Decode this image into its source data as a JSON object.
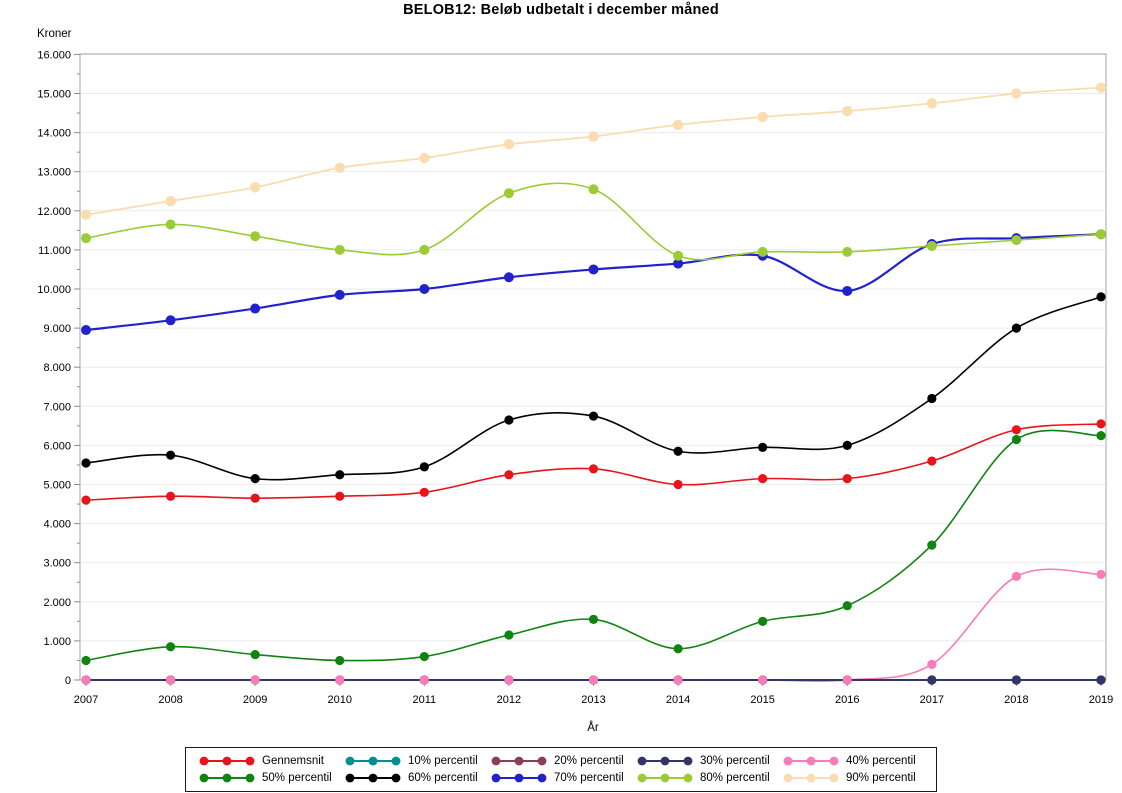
{
  "title": "BELOB12: Beløb udbetalt i december måned",
  "chart_data": {
    "type": "line",
    "title": "BELOB12: Beløb udbetalt i december måned",
    "xlabel": "År",
    "ylabel": "Kroner",
    "x": [
      2007,
      2008,
      2009,
      2010,
      2011,
      2012,
      2013,
      2014,
      2015,
      2016,
      2017,
      2018,
      2019
    ],
    "x_tick_labels": [
      "2007",
      "2008",
      "2009",
      "2010",
      "2011",
      "2012",
      "2013",
      "2014",
      "2015",
      "2016",
      "2017",
      "2018",
      "2019"
    ],
    "y_tick_labels": [
      "0",
      "1.000",
      "2.000",
      "3.000",
      "4.000",
      "5.000",
      "6.000",
      "7.000",
      "8.000",
      "9.000",
      "10.000",
      "11.000",
      "12.000",
      "13.000",
      "14.000",
      "15.000",
      "16.000"
    ],
    "ylim": [
      0,
      16000
    ],
    "y_major_step": 1000,
    "y_minor_step": 500,
    "grid": true,
    "legend_position": "bottom",
    "series": [
      {
        "name": "Gennemsnit",
        "color": "#e8141c",
        "values": [
          4600,
          4700,
          4650,
          4700,
          4800,
          5250,
          5400,
          5000,
          5150,
          5150,
          5600,
          6400,
          6550
        ]
      },
      {
        "name": "10% percentil",
        "color": "#008f8f",
        "values": [
          0,
          0,
          0,
          0,
          0,
          0,
          0,
          0,
          0,
          0,
          0,
          0,
          0
        ]
      },
      {
        "name": "20% percentil",
        "color": "#8e3d53",
        "values": [
          0,
          0,
          0,
          0,
          0,
          0,
          0,
          0,
          0,
          0,
          0,
          0,
          0
        ]
      },
      {
        "name": "30% percentil",
        "color": "#343468",
        "values": [
          0,
          0,
          0,
          0,
          0,
          0,
          0,
          0,
          0,
          0,
          0,
          0,
          0
        ]
      },
      {
        "name": "40% percentil",
        "color": "#f97bb8",
        "values": [
          0,
          0,
          0,
          0,
          0,
          0,
          0,
          0,
          0,
          0,
          400,
          2650,
          2700
        ]
      },
      {
        "name": "50% percentil",
        "color": "#108410",
        "values": [
          500,
          850,
          650,
          500,
          600,
          1150,
          1550,
          800,
          1500,
          1900,
          3450,
          6150,
          6250
        ]
      },
      {
        "name": "60% percentil",
        "color": "#000000",
        "values": [
          5550,
          5750,
          5150,
          5250,
          5450,
          6650,
          6750,
          5850,
          5950,
          6000,
          7200,
          9000,
          9800
        ]
      },
      {
        "name": "70% percentil",
        "color": "#2222cc",
        "values": [
          8950,
          9200,
          9500,
          9850,
          10000,
          10300,
          10500,
          10650,
          10850,
          9950,
          11150,
          11300,
          11400
        ]
      },
      {
        "name": "80% percentil",
        "color": "#9bcb36",
        "values": [
          11300,
          11650,
          11350,
          11000,
          11000,
          12450,
          12550,
          10850,
          10950,
          10950,
          11100,
          11250,
          11400
        ]
      },
      {
        "name": "90% percentil",
        "color": "#f9ddb0",
        "values": [
          11900,
          12250,
          12600,
          13100,
          13350,
          13700,
          13900,
          14200,
          14400,
          14550,
          14750,
          15000,
          15150
        ]
      }
    ]
  }
}
